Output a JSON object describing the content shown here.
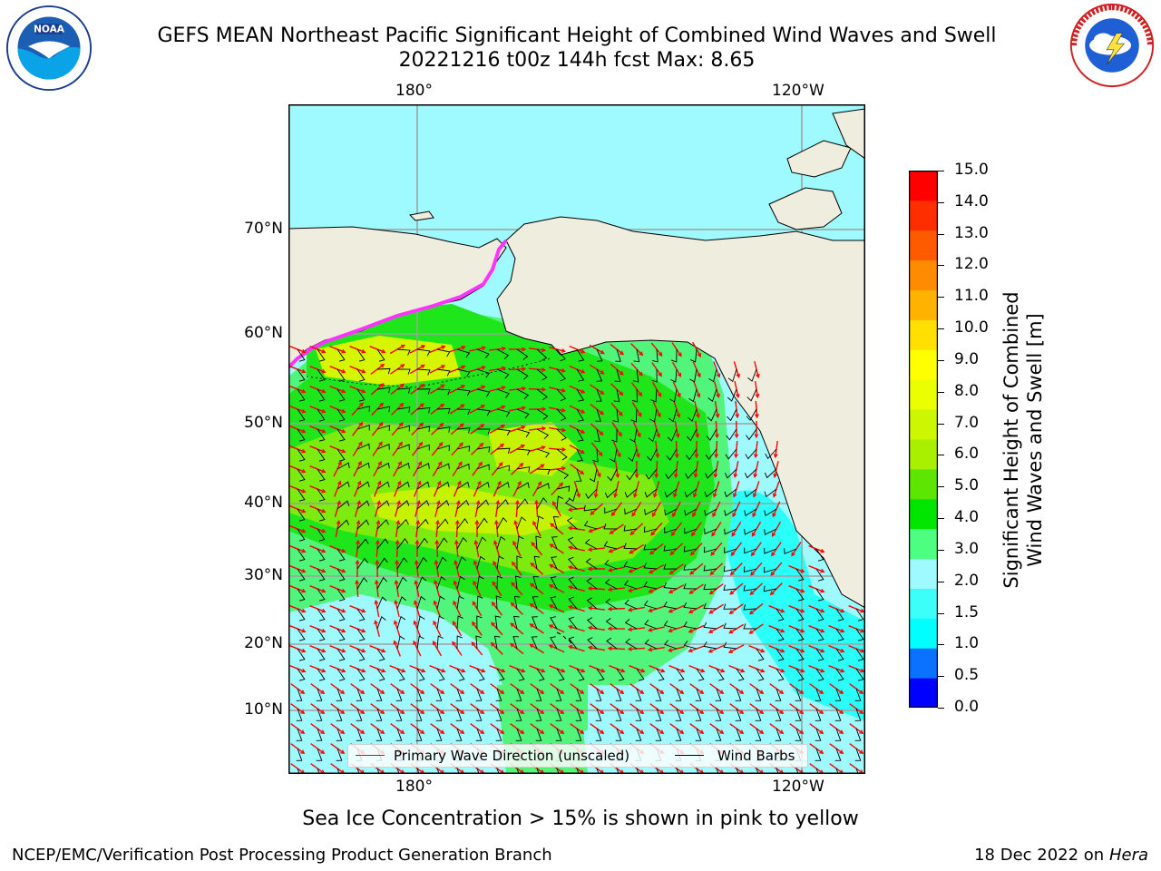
{
  "title": {
    "line1": "GEFS MEAN Northeast Pacific Significant Height of Combined Wind Waves and Swell",
    "line2": "20221216 t00z 144h fcst   Max: 8.65"
  },
  "logos": {
    "left": "noaa-logo",
    "right": "nws-logo"
  },
  "map": {
    "lon_labels_top": [
      "180°",
      "120°W"
    ],
    "lon_labels_bottom": [
      "180°",
      "120°W"
    ],
    "lat_labels": [
      "70°N",
      "60°N",
      "50°N",
      "40°N",
      "30°N",
      "20°N",
      "10°N"
    ],
    "land_color": "#efedde",
    "ocean_default_color": "#9ffaff"
  },
  "colorbar": {
    "ticks": [
      "15.0",
      "14.0",
      "13.0",
      "12.0",
      "11.0",
      "10.0",
      "9.0",
      "8.0",
      "7.0",
      "6.0",
      "5.0",
      "4.0",
      "3.0",
      "2.0",
      "1.5",
      "1.0",
      "0.5",
      "0.0"
    ],
    "colors_bottom_to_top": [
      "#0000ff",
      "#0a72ff",
      "#00ffff",
      "#3dfffa",
      "#9ffaff",
      "#4dff80",
      "#00e600",
      "#5de600",
      "#a8f000",
      "#ccf700",
      "#eaff00",
      "#ffff00",
      "#ffe000",
      "#ffb300",
      "#ff8c00",
      "#ff5a00",
      "#ff2e00",
      "#ff0000"
    ],
    "title_line1": "Significant Height of Combined",
    "title_line2": "Wind Waves and Swell [m]"
  },
  "legend": {
    "wave_label": "Primary Wave Direction (unscaled)",
    "wave_color": "#ff0000",
    "wind_label": "Wind Barbs",
    "wind_color": "#000000"
  },
  "ice_note": "Sea Ice Concentration > 15% is shown in pink to yellow",
  "footer": {
    "left": "NCEP/EMC/Verification Post Processing Product Generation Branch",
    "date": "18 Dec 2022 on",
    "machine": "Hera"
  }
}
